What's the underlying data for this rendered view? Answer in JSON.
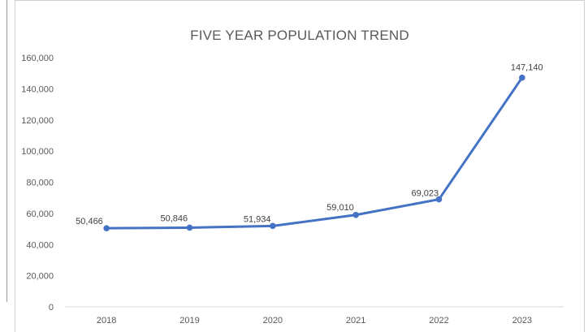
{
  "chart_data": {
    "type": "line",
    "title": "FIVE YEAR POPULATION TREND",
    "xlabel": "",
    "ylabel": "",
    "categories": [
      "2018",
      "2019",
      "2020",
      "2021",
      "2022",
      "2023"
    ],
    "series": [
      {
        "values": [
          50466,
          50846,
          51934,
          59010,
          69023,
          147140
        ]
      }
    ],
    "data_labels": [
      "50,466",
      "50,846",
      "51,934",
      "59,010",
      "69,023",
      "147,140"
    ],
    "ylim": [
      0,
      160000
    ],
    "yticks": [
      "0",
      "20,000",
      "40,000",
      "60,000",
      "80,000",
      "100,000",
      "120,000",
      "140,000",
      "160,000"
    ],
    "grid": false,
    "legend": "none",
    "line_color": "#4472c4"
  }
}
